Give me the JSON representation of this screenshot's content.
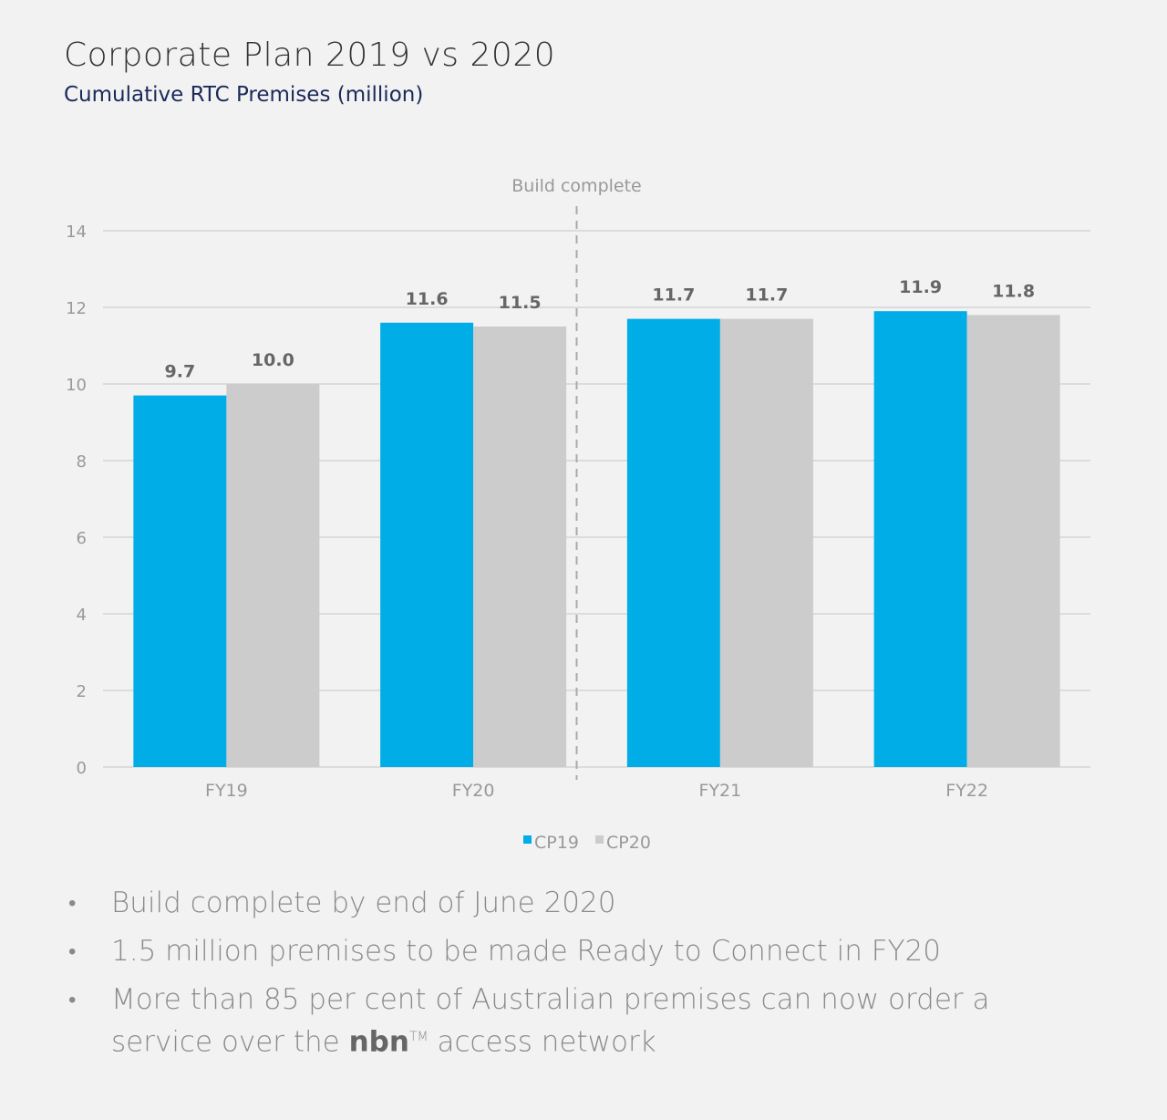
{
  "title": "Corporate Plan 2019 vs 2020",
  "subtitle": "Cumulative RTC Premises (million)",
  "chart_data": {
    "type": "bar",
    "categories": [
      "FY19",
      "FY20",
      "FY21",
      "FY22"
    ],
    "series": [
      {
        "name": "CP19",
        "values": [
          9.7,
          11.6,
          11.7,
          11.9
        ],
        "labels": [
          "9.7",
          "11.6",
          "11.7",
          "11.9"
        ],
        "color": "#00ade6"
      },
      {
        "name": "CP20",
        "values": [
          10.0,
          11.5,
          11.7,
          11.8
        ],
        "labels": [
          "10.0",
          "11.5",
          "11.7",
          "11.8"
        ],
        "color": "#cccccc"
      }
    ],
    "ylim": [
      0,
      14
    ],
    "yticks": [
      "0",
      "2",
      "4",
      "6",
      "8",
      "10",
      "12",
      "14"
    ],
    "grid": true,
    "legend": "bottom-center",
    "annotation": {
      "text": "Build complete",
      "position": "between FY20 and FY21",
      "style": "dashed vertical line"
    }
  },
  "bullets": [
    "Build complete by end of June 2020",
    "1.5 million premises to be made Ready to Connect in FY20",
    "More than 85 per cent of Australian premises can now order a service over the "
  ],
  "bullet_brand": "nbn",
  "bullet_tm": "TM",
  "bullet_tail": " access network"
}
